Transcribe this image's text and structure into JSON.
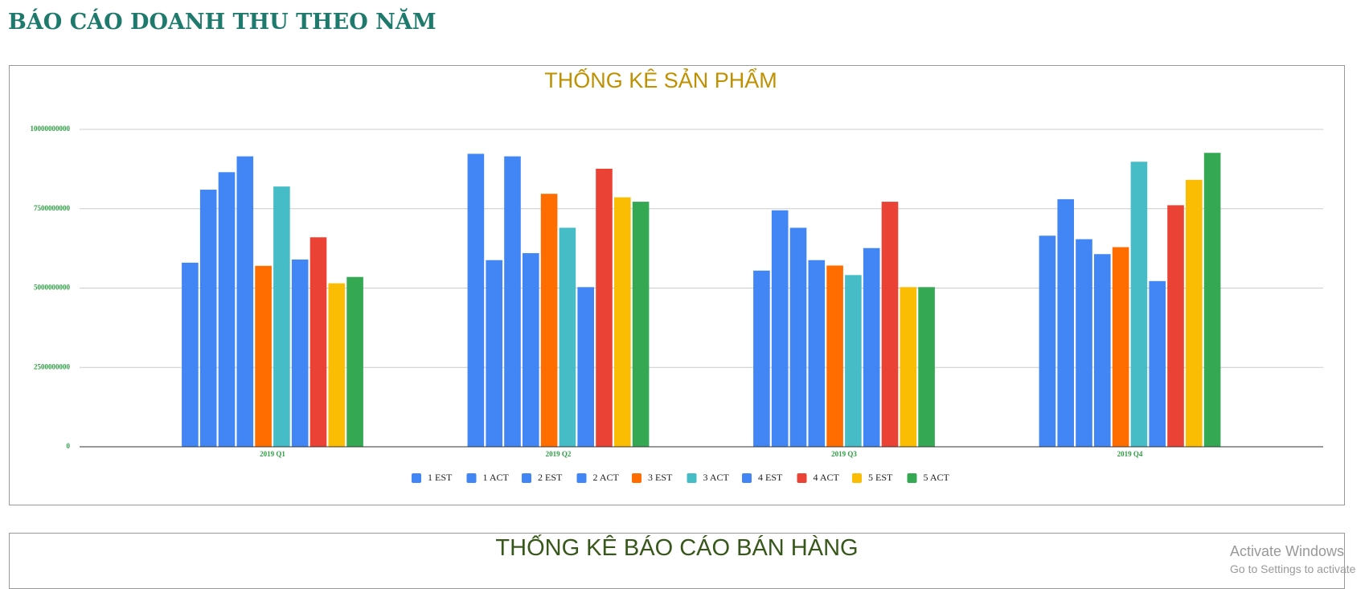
{
  "header": {
    "title": "BÁO CÁO DOANH THU THEO NĂM"
  },
  "chart_data": {
    "type": "bar",
    "title": "THỐNG KÊ SẢN PHẨM",
    "categories": [
      "2019 Q1",
      "2019 Q2",
      "2019 Q3",
      "2019 Q4"
    ],
    "series": [
      {
        "name": "1 EST",
        "color": "#4285f4",
        "values": [
          5800000000,
          9230000000,
          5550000000,
          6650000000
        ]
      },
      {
        "name": "1 ACT",
        "color": "#4285f4",
        "values": [
          8100000000,
          5880000000,
          7450000000,
          7800000000
        ]
      },
      {
        "name": "2 EST",
        "color": "#4285f4",
        "values": [
          8650000000,
          9150000000,
          6900000000,
          6540000000
        ]
      },
      {
        "name": "2 ACT",
        "color": "#4285f4",
        "values": [
          9150000000,
          6100000000,
          5880000000,
          6070000000
        ]
      },
      {
        "name": "3 EST",
        "color": "#ff6d01",
        "values": [
          5700000000,
          7970000000,
          5710000000,
          6290000000
        ]
      },
      {
        "name": "3 ACT",
        "color": "#46bdc6",
        "values": [
          8200000000,
          6900000000,
          5410000000,
          8980000000
        ]
      },
      {
        "name": "4 EST",
        "color": "#4285f4",
        "values": [
          5900000000,
          5030000000,
          6260000000,
          5220000000
        ]
      },
      {
        "name": "4 ACT",
        "color": "#ea4335",
        "values": [
          6600000000,
          8760000000,
          7720000000,
          7610000000
        ]
      },
      {
        "name": "5 EST",
        "color": "#fbbc04",
        "values": [
          5150000000,
          7860000000,
          5030000000,
          8410000000
        ]
      },
      {
        "name": "5 ACT",
        "color": "#34a853",
        "values": [
          5350000000,
          7720000000,
          5030000000,
          9260000000
        ]
      }
    ],
    "ylim": [
      0,
      10000000000
    ],
    "yticks": [
      0,
      2500000000,
      5000000000,
      7500000000,
      10000000000
    ],
    "grid": true,
    "legend": "bottom"
  },
  "section2": {
    "title": "THỐNG KÊ BÁO CÁO BÁN HÀNG"
  },
  "watermark": {
    "line1": "Activate Windows",
    "line2": "Go to Settings to activate"
  }
}
